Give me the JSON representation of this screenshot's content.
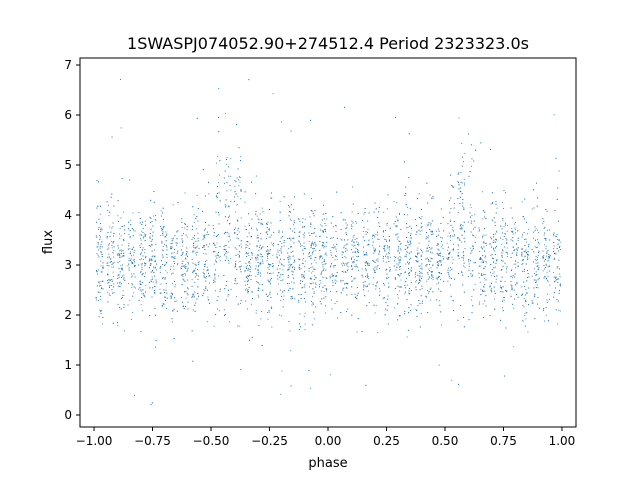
{
  "chart_data": {
    "type": "scatter",
    "title": "1SWASPJ074052.90+274512.4 Period 2323323.0s",
    "xlabel": "phase",
    "ylabel": "flux",
    "xlim": [
      -1.06,
      1.06
    ],
    "ylim": [
      -0.24,
      7.14
    ],
    "xticks": [
      -1.0,
      -0.75,
      -0.5,
      -0.25,
      0.0,
      0.25,
      0.5,
      0.75,
      1.0
    ],
    "xtick_labels": [
      "−1.00",
      "−0.75",
      "−0.50",
      "−0.25",
      "0.00",
      "0.25",
      "0.50",
      "0.75",
      "1.00"
    ],
    "yticks": [
      0,
      1,
      2,
      3,
      4,
      5,
      6,
      7
    ],
    "ytick_labels": [
      "0",
      "1",
      "2",
      "3",
      "4",
      "5",
      "6",
      "7"
    ],
    "grid": false,
    "marker_color": "#1f77b4",
    "series": [
      {
        "name": "",
        "description_points": [
          {
            "phase": -0.45,
            "flux_peak": 5.3
          },
          {
            "phase": -0.4,
            "flux_peak": 6.6
          },
          {
            "phase": 0.55,
            "flux_peak": 5.3
          },
          {
            "phase": 0.6,
            "flux_peak": 6.6
          }
        ],
        "median_flux": 3.1,
        "typical_range": [
          2.0,
          4.3
        ],
        "flux_min": 0.1,
        "flux_max": 6.9
      }
    ]
  }
}
